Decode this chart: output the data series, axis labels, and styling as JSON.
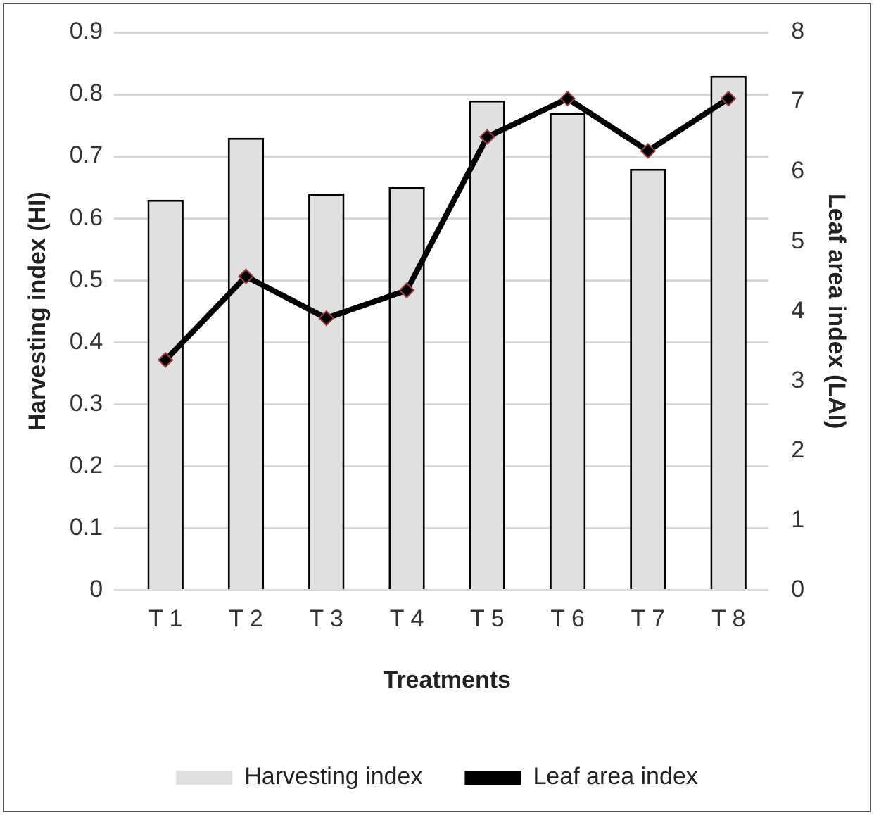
{
  "chart_data": {
    "type": "bar",
    "categories": [
      "T 1",
      "T 2",
      "T 3",
      "T 4",
      "T 5",
      "T 6",
      "T 7",
      "T 8"
    ],
    "xlabel": "Treatments",
    "ylabel": "Harvesting index (HI)",
    "y2label": "Leaf area index (LAI)",
    "series": [
      {
        "name": "Harvesting index",
        "color": "#e0e0e0",
        "values": [
          0.63,
          0.73,
          0.64,
          0.65,
          0.79,
          0.77,
          0.68,
          0.83
        ]
      },
      {
        "name": "Leaf area index",
        "type": "line",
        "axis": "y2",
        "color": "#000000",
        "marker": "diamond",
        "values": [
          3.3,
          4.5,
          3.9,
          4.3,
          6.5,
          7.05,
          6.3,
          7.05
        ]
      }
    ],
    "ylim": [
      0,
      0.9
    ],
    "yticks": [
      0,
      0.1,
      0.2,
      0.3,
      0.4,
      0.5,
      0.6,
      0.7,
      0.8,
      0.9
    ],
    "y2lim": [
      0,
      8
    ],
    "y2ticks": [
      0,
      1,
      2,
      3,
      4,
      5,
      6,
      7,
      8
    ],
    "grid": "y",
    "legend": "bottom"
  }
}
